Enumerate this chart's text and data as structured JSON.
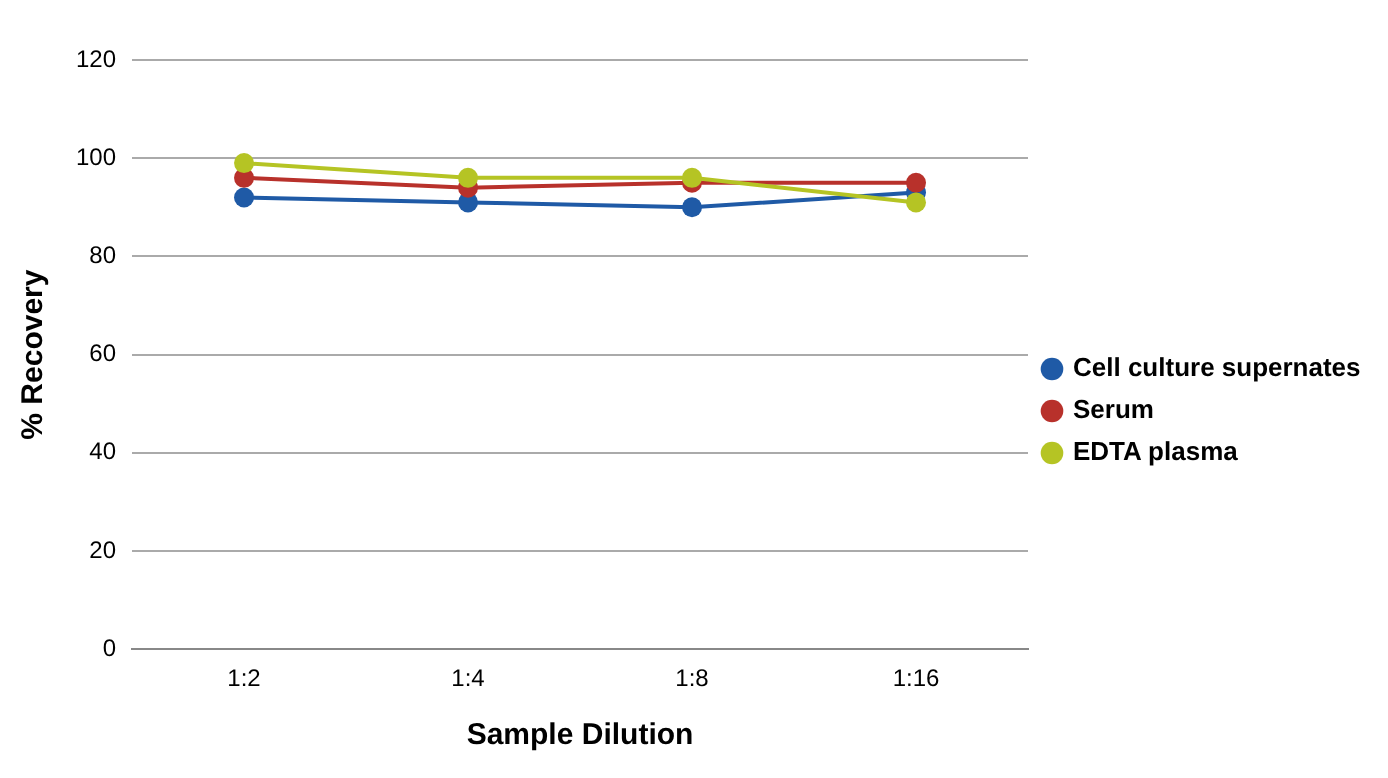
{
  "chart_data": {
    "type": "line",
    "xlabel": "Sample Dilution",
    "ylabel": "% Recovery",
    "categories": [
      "1:2",
      "1:4",
      "1:8",
      "1:16"
    ],
    "series": [
      {
        "name": "Cell culture supernates",
        "color": "#1f5aa6",
        "values": [
          92,
          91,
          90,
          93
        ]
      },
      {
        "name": "Serum",
        "color": "#b8312b",
        "values": [
          96,
          94,
          95,
          95
        ]
      },
      {
        "name": "EDTA plasma",
        "color": "#b5c424",
        "values": [
          99,
          96,
          96,
          91
        ]
      }
    ],
    "ylim": [
      0,
      120
    ],
    "yticks": [
      0,
      20,
      40,
      60,
      80,
      100,
      120
    ],
    "grid": "y",
    "legend": "right",
    "marker": "circle",
    "line_style": "solid"
  }
}
